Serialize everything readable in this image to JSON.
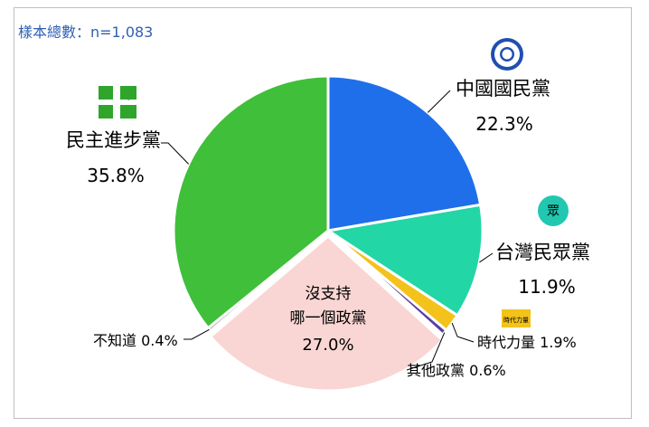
{
  "sample_text": "樣本總數：n=1,083",
  "colors": {
    "kmt": "#1f6fea",
    "tpp": "#22d6a6",
    "npp": "#f3c21b",
    "other": "#5a3fa0",
    "none": "#f9d6d4",
    "unknown": "#b8b8b8",
    "dpp": "#3fbf3a",
    "leader": "#000000"
  },
  "icons": {
    "kmt": "kmt-sun-logo-icon",
    "tpp": "tpp-logo-icon",
    "npp": "new-power-party-logo-icon",
    "dpp": "dpp-taiwan-logo-icon"
  },
  "chart_data": {
    "type": "pie",
    "slices": [
      {
        "name": "中國國民黨",
        "value": 22.3,
        "label": "22.3%"
      },
      {
        "name": "台灣民眾黨",
        "value": 11.9,
        "label": "11.9%"
      },
      {
        "name": "時代力量",
        "value": 1.9,
        "label": "1.9%"
      },
      {
        "name": "其他政黨",
        "value": 0.6,
        "label": "0.6%"
      },
      {
        "name": "沒支持哪一個政黨",
        "value": 27.0,
        "label": "27.0%"
      },
      {
        "name": "不知道",
        "value": 0.4,
        "label": "0.4%"
      },
      {
        "name": "民主進步黨",
        "value": 35.8,
        "label": "35.8%"
      }
    ],
    "labels": {
      "kmt_name": "中國國民黨",
      "kmt_value": "22.3%",
      "tpp_name": "台灣民眾黨",
      "tpp_value": "11.9%",
      "npp_text": "時代力量 1.9%",
      "other_text": "其他政黨 0.6%",
      "none_line1": "沒支持",
      "none_line2": "哪一個政黨",
      "none_value": "27.0%",
      "unknown_text": "不知道 0.4%",
      "dpp_name": "民主進步黨",
      "dpp_value": "35.8%",
      "tpp_logo_text": "眾",
      "npp_logo_text": "時代力量"
    }
  }
}
